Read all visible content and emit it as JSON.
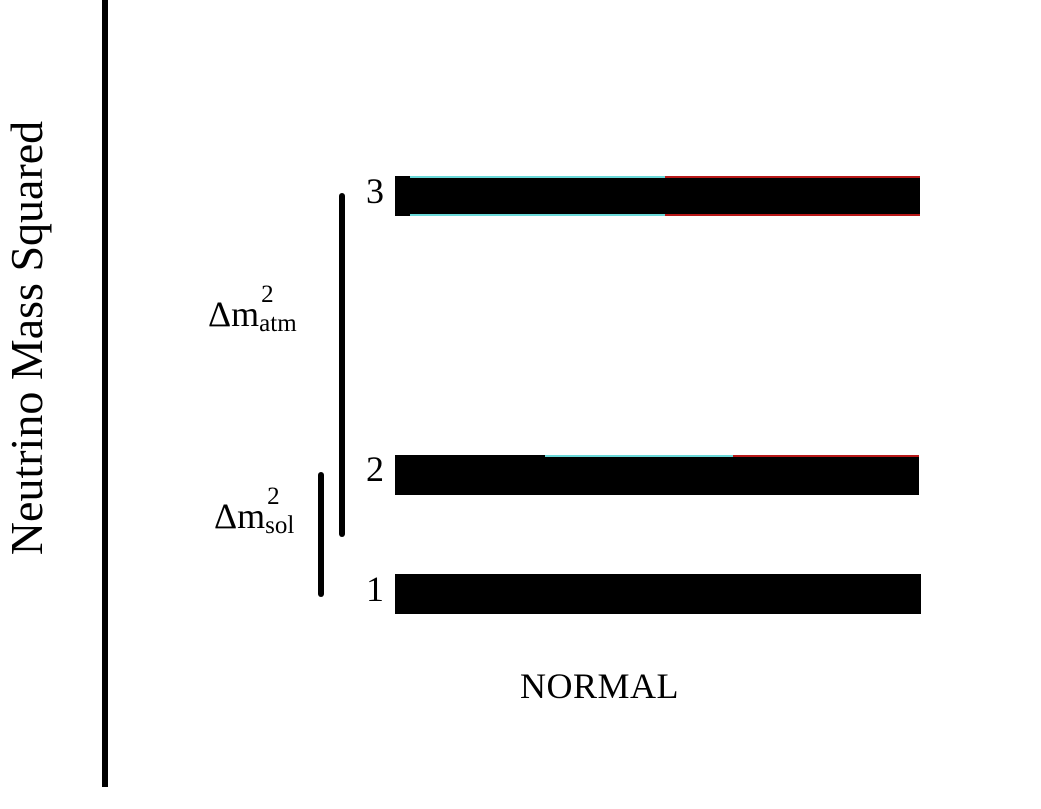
{
  "axis": {
    "label": "Neutrino Mass Squared"
  },
  "levels": [
    {
      "label": "1"
    },
    {
      "label": "2"
    },
    {
      "label": "3"
    }
  ],
  "splittings": {
    "atm": {
      "symbol": "Δm",
      "superscript": "2",
      "subscript": "atm"
    },
    "sol": {
      "symbol": "Δm",
      "superscript": "2",
      "subscript": "sol"
    }
  },
  "ordering": {
    "label": "NORMAL"
  },
  "colors": {
    "bar": "#000000",
    "tint_cyan": "#6ad8d8",
    "tint_red": "#b81818",
    "background": "#ffffff"
  }
}
